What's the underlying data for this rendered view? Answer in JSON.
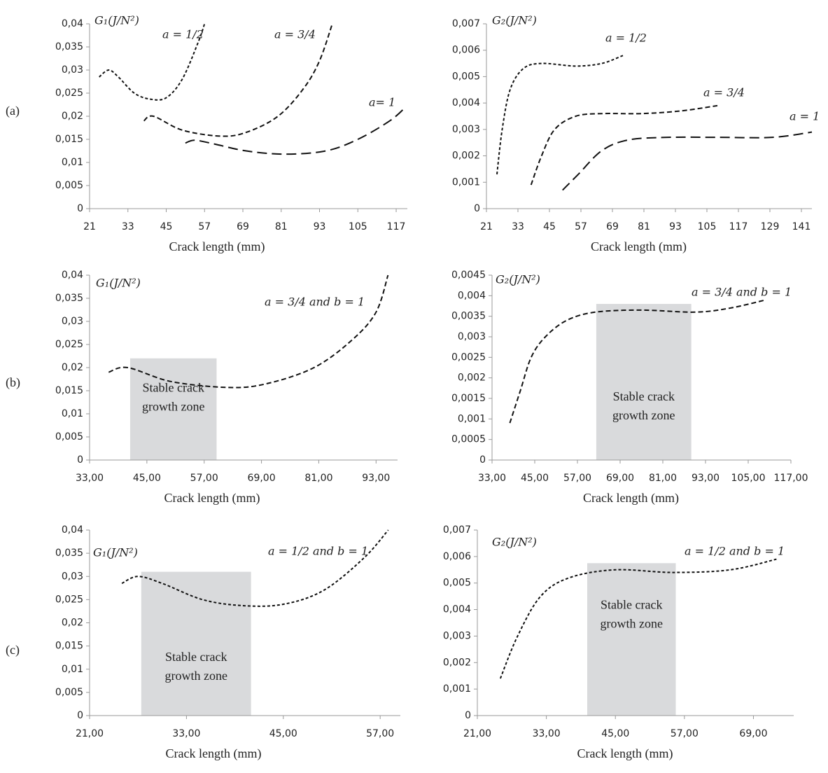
{
  "panel_labels": [
    "(a)",
    "(b)",
    "(c)"
  ],
  "chart_data": [
    {
      "type": "line",
      "y_label": "G₁(J/N²)",
      "xlabel": "Crack length (mm)",
      "xlim": [
        21,
        120.5
      ],
      "ylim": [
        0,
        0.04
      ],
      "xticks": [
        21,
        33,
        45,
        57,
        69,
        81,
        93,
        105,
        117
      ],
      "yticks": [
        0,
        {
          "value": 0.005,
          "label": "0,005"
        },
        {
          "value": 0.01,
          "label": "0,01"
        },
        {
          "value": 0.015,
          "label": "0,015"
        },
        {
          "value": 0.02,
          "label": "0,02"
        },
        {
          "value": 0.025,
          "label": "0,025"
        },
        {
          "value": 0.03,
          "label": "0,03"
        },
        {
          "value": 0.035,
          "label": "0,035"
        },
        {
          "value": 0.04,
          "label": "0,04"
        }
      ],
      "series": [
        {
          "name": "a = 1/2",
          "color": "#111111",
          "linestyle": "dotted",
          "x": [
            24,
            27,
            30,
            35,
            40,
            45,
            50,
            55,
            57
          ],
          "values": [
            0.0285,
            0.03,
            0.0285,
            0.025,
            0.0237,
            0.024,
            0.028,
            0.036,
            0.04
          ]
        },
        {
          "name": "a = 3/4",
          "color": "#111111",
          "linestyle": "dashed",
          "x": [
            38,
            41,
            50,
            62,
            70,
            80,
            88,
            93,
            97
          ],
          "values": [
            0.019,
            0.02,
            0.017,
            0.0157,
            0.0165,
            0.02,
            0.026,
            0.032,
            0.04
          ]
        },
        {
          "name": "a= 1",
          "color": "#111111",
          "linestyle": "long-dashed",
          "x": [
            51,
            54,
            60,
            70,
            82,
            95,
            105,
            115,
            120
          ],
          "values": [
            0.0142,
            0.0148,
            0.014,
            0.0125,
            0.0118,
            0.0125,
            0.015,
            0.019,
            0.022
          ]
        }
      ]
    },
    {
      "type": "line",
      "y_label": "G₂(J/N²)",
      "xlabel": "Crack length (mm)",
      "xlim": [
        21,
        145
      ],
      "ylim": [
        0,
        0.007
      ],
      "xticks": [
        21,
        33,
        45,
        57,
        69,
        81,
        93,
        105,
        117,
        129,
        141
      ],
      "yticks": [
        0,
        {
          "value": 0.001,
          "label": "0,001"
        },
        {
          "value": 0.002,
          "label": "0,002"
        },
        {
          "value": 0.003,
          "label": "0,003"
        },
        {
          "value": 0.004,
          "label": "0,004"
        },
        {
          "value": 0.005,
          "label": "0,005"
        },
        {
          "value": 0.006,
          "label": "0,006"
        },
        {
          "value": 0.007,
          "label": "0,007"
        }
      ],
      "series": [
        {
          "name": "a = 1/2",
          "color": "#111111",
          "linestyle": "dotted",
          "x": [
            25,
            27,
            30,
            35,
            42,
            55,
            65,
            73
          ],
          "values": [
            0.0013,
            0.003,
            0.0045,
            0.0053,
            0.0055,
            0.0054,
            0.0055,
            0.0058
          ]
        },
        {
          "name": "a = 3/4",
          "color": "#111111",
          "linestyle": "dashed",
          "x": [
            38,
            42,
            47,
            55,
            65,
            80,
            95,
            109
          ],
          "values": [
            0.0009,
            0.002,
            0.003,
            0.0035,
            0.0036,
            0.0036,
            0.0037,
            0.0039
          ]
        },
        {
          "name": "a = 1",
          "color": "#111111",
          "linestyle": "long-dashed",
          "x": [
            50,
            56,
            65,
            75,
            90,
            110,
            130,
            145
          ],
          "values": [
            0.0007,
            0.0013,
            0.0022,
            0.0026,
            0.0027,
            0.0027,
            0.0027,
            0.0029
          ]
        }
      ]
    },
    {
      "type": "line",
      "y_label": "G₁(J/N²)",
      "xlabel": "Crack length (mm)",
      "xlim": [
        33,
        97.5
      ],
      "ylim": [
        0,
        0.04
      ],
      "xticks": [
        {
          "value": 33,
          "label": "33,00"
        },
        {
          "value": 45,
          "label": "45,00"
        },
        {
          "value": 57,
          "label": "57,00"
        },
        {
          "value": 69,
          "label": "69,00"
        },
        {
          "value": 81,
          "label": "81,00"
        },
        {
          "value": 93,
          "label": "93,00"
        }
      ],
      "yticks": [
        0,
        {
          "value": 0.005,
          "label": "0,005"
        },
        {
          "value": 0.01,
          "label": "0,01"
        },
        {
          "value": 0.015,
          "label": "0,015"
        },
        {
          "value": 0.02,
          "label": "0,02"
        },
        {
          "value": 0.025,
          "label": "0,025"
        },
        {
          "value": 0.03,
          "label": "0,03"
        },
        {
          "value": 0.035,
          "label": "0,035"
        },
        {
          "value": 0.04,
          "label": "0,04"
        }
      ],
      "zone": {
        "x": [
          41.5,
          59.6
        ],
        "y_top": 0.022,
        "color": "#d9dadc",
        "label": [
          "Stable crack",
          "growth zone"
        ]
      },
      "series": [
        {
          "name": "a = 3/4 and b = 1",
          "color": "#111111",
          "linestyle": "dashed",
          "x": [
            37,
            41,
            50,
            62,
            70,
            80,
            88,
            93,
            95.5
          ],
          "values": [
            0.019,
            0.02,
            0.017,
            0.0157,
            0.0165,
            0.02,
            0.026,
            0.032,
            0.04
          ]
        }
      ]
    },
    {
      "type": "line",
      "y_label": "G₂(J/N²)",
      "xlabel": "Crack length (mm)",
      "xlim": [
        33,
        117
      ],
      "ylim": [
        0,
        0.0045
      ],
      "xticks": [
        {
          "value": 33,
          "label": "33,00"
        },
        {
          "value": 45,
          "label": "45,00"
        },
        {
          "value": 57,
          "label": "57,00"
        },
        {
          "value": 69,
          "label": "69,00"
        },
        {
          "value": 81,
          "label": "81,00"
        },
        {
          "value": 93,
          "label": "93,00"
        },
        {
          "value": 105,
          "label": "105,00"
        },
        {
          "value": 117,
          "label": "117,00"
        }
      ],
      "yticks": [
        0,
        {
          "value": 0.0005,
          "label": "0,0005"
        },
        {
          "value": 0.001,
          "label": "0,001"
        },
        {
          "value": 0.0015,
          "label": "0,0015"
        },
        {
          "value": 0.002,
          "label": "0,002"
        },
        {
          "value": 0.0025,
          "label": "0,0025"
        },
        {
          "value": 0.003,
          "label": "0,003"
        },
        {
          "value": 0.0035,
          "label": "0,0035"
        },
        {
          "value": 0.004,
          "label": "0,004"
        },
        {
          "value": 0.0045,
          "label": "0,0045"
        }
      ],
      "zone": {
        "x": [
          62.3,
          89
        ],
        "y_top": 0.0038,
        "color": "#d9dadc",
        "label": [
          "Stable crack",
          "growth zone"
        ]
      },
      "series": [
        {
          "name": "a = 3/4 and b = 1",
          "color": "#111111",
          "linestyle": "dashed",
          "x": [
            38,
            41,
            44,
            48,
            54,
            62,
            75,
            90,
            100,
            110
          ],
          "values": [
            0.0009,
            0.0017,
            0.0025,
            0.003,
            0.0034,
            0.0036,
            0.00365,
            0.0036,
            0.0037,
            0.0039
          ]
        }
      ]
    },
    {
      "type": "line",
      "y_label": "G₁(J/N²)",
      "xlabel": "Crack length (mm)",
      "xlim": [
        21,
        59.5
      ],
      "ylim": [
        0,
        0.04
      ],
      "xticks": [
        {
          "value": 21,
          "label": "21,00"
        },
        {
          "value": 33,
          "label": "33,00"
        },
        {
          "value": 45,
          "label": "45,00"
        },
        {
          "value": 57,
          "label": "57,00"
        }
      ],
      "yticks": [
        0,
        {
          "value": 0.005,
          "label": "0,005"
        },
        {
          "value": 0.01,
          "label": "0,01"
        },
        {
          "value": 0.015,
          "label": "0,015"
        },
        {
          "value": 0.02,
          "label": "0,02"
        },
        {
          "value": 0.025,
          "label": "0,025"
        },
        {
          "value": 0.03,
          "label": "0,03"
        },
        {
          "value": 0.035,
          "label": "0,035"
        },
        {
          "value": 0.04,
          "label": "0,04"
        }
      ],
      "zone": {
        "x": [
          27.4,
          41
        ],
        "y_top": 0.031,
        "color": "#d9dadc",
        "label": [
          "Stable crack",
          "growth zone"
        ]
      },
      "series": [
        {
          "name": "a = 1/2 and b = 1",
          "color": "#111111",
          "linestyle": "dotted",
          "x": [
            25,
            27,
            30,
            35,
            40,
            45,
            50,
            55,
            58
          ],
          "values": [
            0.0285,
            0.03,
            0.0285,
            0.025,
            0.0237,
            0.024,
            0.027,
            0.034,
            0.04
          ]
        }
      ]
    },
    {
      "type": "line",
      "y_label": "G₂(J/N²)",
      "xlabel": "Crack length (mm)",
      "xlim": [
        21,
        76
      ],
      "ylim": [
        0,
        0.007
      ],
      "xticks": [
        {
          "value": 21,
          "label": "21,00"
        },
        {
          "value": 33,
          "label": "33,00"
        },
        {
          "value": 45,
          "label": "45,00"
        },
        {
          "value": 57,
          "label": "57,00"
        },
        {
          "value": 69,
          "label": "69,00"
        }
      ],
      "yticks": [
        0,
        {
          "value": 0.001,
          "label": "0,001"
        },
        {
          "value": 0.002,
          "label": "0,002"
        },
        {
          "value": 0.003,
          "label": "0,003"
        },
        {
          "value": 0.004,
          "label": "0,004"
        },
        {
          "value": 0.005,
          "label": "0,005"
        },
        {
          "value": 0.006,
          "label": "0,006"
        },
        {
          "value": 0.007,
          "label": "0,007"
        }
      ],
      "zone": {
        "x": [
          40.1,
          55.5
        ],
        "y_top": 0.00575,
        "color": "#d9dadc",
        "label": [
          "Stable crack",
          "growth zone"
        ]
      },
      "series": [
        {
          "name": "a = 1/2 and b = 1",
          "color": "#111111",
          "linestyle": "dotted",
          "x": [
            25,
            28,
            32,
            37,
            45,
            55,
            65,
            73
          ],
          "values": [
            0.0014,
            0.003,
            0.0045,
            0.0052,
            0.0055,
            0.0054,
            0.0055,
            0.0059
          ]
        }
      ]
    }
  ]
}
